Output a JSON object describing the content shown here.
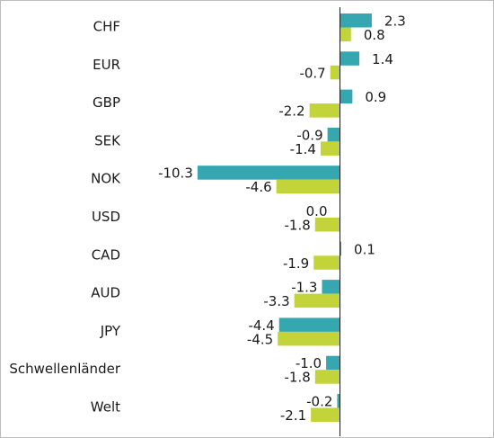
{
  "chart_data": {
    "type": "bar",
    "orientation": "horizontal",
    "categories": [
      "CHF",
      "EUR",
      "GBP",
      "SEK",
      "NOK",
      "USD",
      "CAD",
      "AUD",
      "JPY",
      "Schwellenländer",
      "Welt"
    ],
    "series": [
      {
        "color": "#35a7b0",
        "values": [
          2.3,
          1.4,
          0.9,
          -0.9,
          -10.3,
          0.0,
          0.1,
          -1.3,
          -4.4,
          -1.0,
          -0.2
        ]
      },
      {
        "color": "#c3d43a",
        "values": [
          0.8,
          -0.7,
          -2.2,
          -1.4,
          -4.6,
          -1.8,
          -1.9,
          -3.3,
          -4.5,
          -1.8,
          -2.1
        ]
      }
    ],
    "value_labels": [
      [
        "2.3",
        "1.4",
        "0.9",
        "-0.9",
        "-10.3",
        "0.0",
        "0.1",
        "-1.3",
        "-4.4",
        "-1.0",
        "-0.2"
      ],
      [
        "0.8",
        "-0.7",
        "-2.2",
        "-1.4",
        "-4.6",
        "-1.8",
        "-1.9",
        "-3.3",
        "-4.5",
        "-1.8",
        "-2.1"
      ]
    ],
    "xlim": [
      -10.9,
      10.9
    ],
    "grid": false,
    "legend": "none",
    "zero_line_color": "#1a1a1a"
  }
}
